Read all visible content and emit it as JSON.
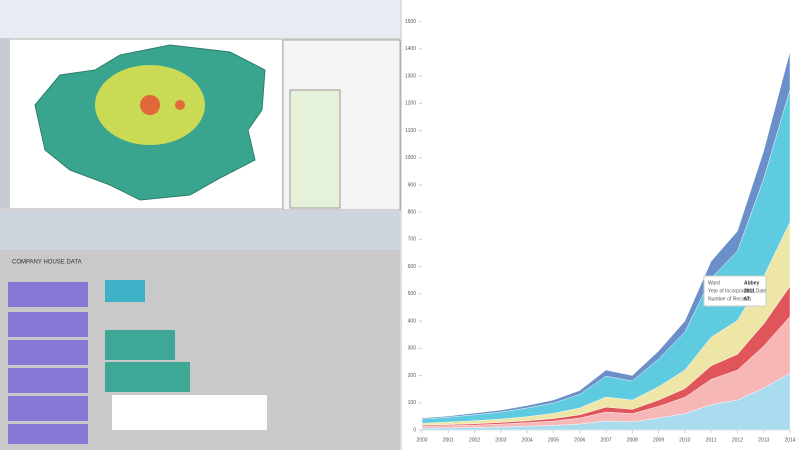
{
  "app": {
    "canvas_title": "COMPANY HOUSE DATA"
  },
  "chart_data": {
    "type": "stacked-area",
    "x": [
      2000,
      2001,
      2002,
      2003,
      2004,
      2005,
      2006,
      2007,
      2008,
      2009,
      2010,
      2011,
      2012,
      2013,
      2014
    ],
    "xlim": [
      2000,
      2014
    ],
    "xticks": [
      2000,
      2001,
      2002,
      2003,
      2004,
      2005,
      2006,
      2007,
      2008,
      2009,
      2010,
      2011,
      2012,
      2013,
      2014
    ],
    "ylim": [
      0,
      1550
    ],
    "yticks": [
      0,
      100,
      200,
      300,
      400,
      500,
      600,
      700,
      800,
      900,
      1000,
      1100,
      1200,
      1300,
      1400,
      1500
    ],
    "series": [
      {
        "color": "#a9dcef",
        "values": [
          7,
          8,
          9,
          11,
          14,
          17,
          22,
          33,
          30,
          44,
          60,
          93,
          110,
          154,
          208
        ]
      },
      {
        "color": "#f7b7b7",
        "values": [
          7,
          8,
          9,
          11,
          13,
          16,
          22,
          33,
          30,
          43,
          60,
          93,
          110,
          154,
          209
        ]
      },
      {
        "color": "#e0555a",
        "values": [
          4,
          4,
          5,
          6,
          7,
          9,
          12,
          18,
          16,
          23,
          32,
          50,
          58,
          82,
          111
        ]
      },
      {
        "color": "#eee6a6",
        "values": [
          7,
          9,
          11,
          12,
          15,
          19,
          25,
          37,
          34,
          49,
          68,
          105,
          124,
          174,
          236
        ]
      },
      {
        "color": "#5ecbe0",
        "values": [
          15,
          18,
          22,
          26,
          32,
          38,
          50,
          77,
          70,
          102,
          140,
          217,
          255,
          359,
          487
        ]
      },
      {
        "color": "#6a8fc9",
        "values": [
          4,
          4,
          6,
          7,
          9,
          11,
          14,
          22,
          20,
          29,
          40,
          62,
          73,
          102,
          139
        ]
      }
    ],
    "tooltip": {
      "rows": [
        [
          "Ward",
          "Abbey"
        ],
        [
          "Year of Incorporation Date",
          "2011"
        ],
        [
          "Number of Records",
          "67"
        ]
      ]
    }
  }
}
